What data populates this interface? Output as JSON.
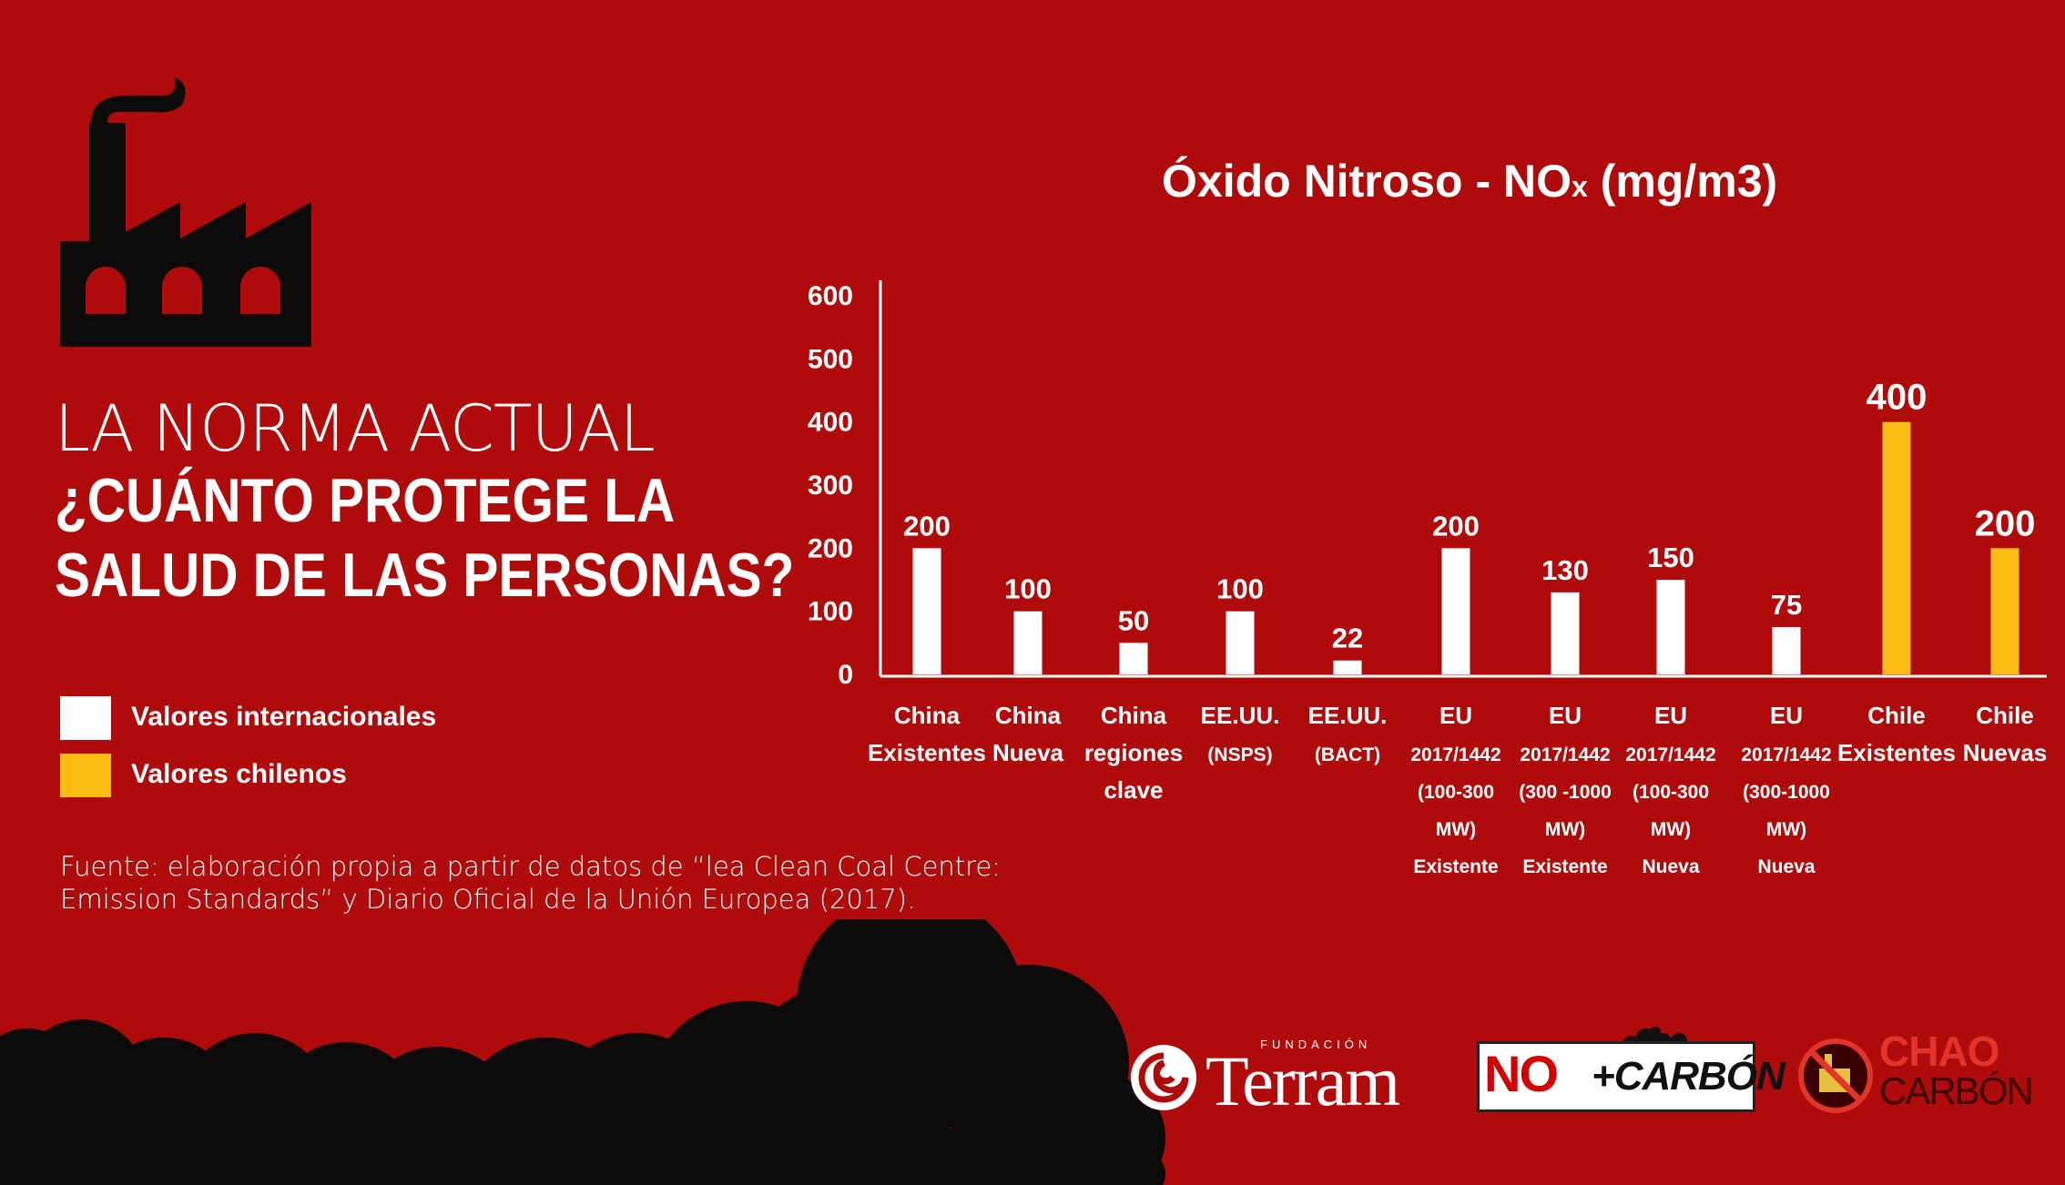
{
  "heading": {
    "line1": "LA NORMA ACTUAL",
    "line2": "¿CUÁNTO PROTEGE LA",
    "line3": "SALUD DE LAS PERSONAS?"
  },
  "legend": [
    {
      "label": "Valores internacionales",
      "color": "#ffffff"
    },
    {
      "label": "Valores chilenos",
      "color": "#fdbc13"
    }
  ],
  "source": {
    "line1": "Fuente: elaboración propia a partir de datos de “lea Clean Coal Centre:",
    "line2": "Emission Standards” y Diario Oficial de la Unión Europea (2017)."
  },
  "chart_title": {
    "main": "Óxido Nitroso - NO",
    "sub": "x",
    "unit": " (mg/m3)"
  },
  "chart_data": {
    "type": "bar",
    "title": "Óxido Nitroso - NOx (mg/m3)",
    "ylim": [
      0,
      600
    ],
    "yticks": [
      0,
      100,
      200,
      300,
      400,
      500,
      600
    ],
    "grid": false,
    "legend_position": "left",
    "categories": [
      [
        "China",
        "Existentes"
      ],
      [
        "China",
        "Nueva"
      ],
      [
        "China",
        "regiones",
        "clave"
      ],
      [
        "EE.UU.",
        "(NSPS)"
      ],
      [
        "EE.UU.",
        "(BACT)"
      ],
      [
        "EU",
        "2017/1442",
        "(100-300",
        "MW)",
        "Existente"
      ],
      [
        "EU",
        "2017/1442",
        "(300 -1000",
        "MW)",
        "Existente"
      ],
      [
        "EU",
        "2017/1442",
        "(100-300",
        "MW)",
        "Nueva"
      ],
      [
        "EU",
        "2017/1442",
        "(300-1000",
        "MW)",
        "Nueva"
      ],
      [
        "Chile",
        "Existentes"
      ],
      [
        "Chile",
        "Nuevas"
      ]
    ],
    "values": [
      200,
      100,
      50,
      100,
      22,
      200,
      130,
      150,
      75,
      400,
      200
    ],
    "groups": [
      "Valores internacionales",
      "Valores internacionales",
      "Valores internacionales",
      "Valores internacionales",
      "Valores internacionales",
      "Valores internacionales",
      "Valores internacionales",
      "Valores internacionales",
      "Valores internacionales",
      "Valores chilenos",
      "Valores chilenos"
    ]
  },
  "colors": {
    "background": "#b00b0b",
    "international": "#ffffff",
    "chilean": "#fdbc13",
    "silhouette": "#0d0a0a"
  },
  "logos": {
    "terram": {
      "prefix": "FUNDACIÓN",
      "name": "Terram"
    },
    "nocarbon": {
      "no": "NO",
      "carbon": "+CARBÓN"
    },
    "chaocarbon": {
      "line1": "CHAO",
      "line2": "CARBÓN"
    }
  },
  "icons": [
    "factory-icon",
    "smoke-cloud-icon",
    "terram-swirl-icon",
    "chao-carbon-icon"
  ]
}
